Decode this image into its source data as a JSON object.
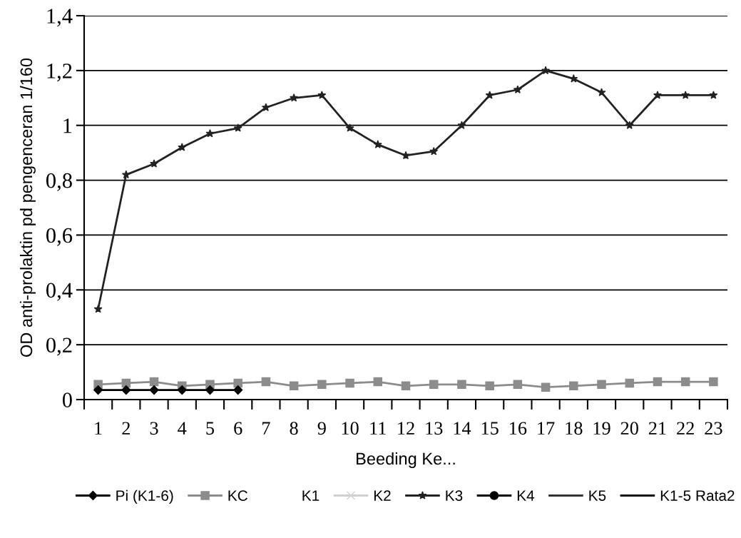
{
  "chart_data": {
    "type": "line",
    "xlabel": "Beeding Ke...",
    "ylabel": "OD anti-prolaktin pd pengenceran 1/160",
    "categories": [
      "1",
      "2",
      "3",
      "4",
      "5",
      "6",
      "7",
      "8",
      "9",
      "10",
      "11",
      "12",
      "13",
      "14",
      "15",
      "16",
      "17",
      "18",
      "19",
      "20",
      "21",
      "22",
      "23"
    ],
    "series": [
      {
        "name": "Pi (K1-6)",
        "color": "#000000",
        "marker": "diamond",
        "values": [
          0.035,
          0.035,
          0.035,
          0.035,
          0.035,
          0.035,
          null,
          null,
          null,
          null,
          null,
          null,
          null,
          null,
          null,
          null,
          null,
          null,
          null,
          null,
          null,
          null,
          null
        ]
      },
      {
        "name": "KC",
        "color": "#8c8c8c",
        "marker": "square",
        "values": [
          0.055,
          0.06,
          0.065,
          0.05,
          0.055,
          0.06,
          0.065,
          0.05,
          0.055,
          0.06,
          0.065,
          0.05,
          0.055,
          0.055,
          0.05,
          0.055,
          0.045,
          0.05,
          0.055,
          0.06,
          0.065,
          0.065,
          0.065
        ]
      },
      {
        "name": "K1",
        "values": [
          null,
          null,
          null,
          null,
          null,
          null,
          null,
          null,
          null,
          null,
          null,
          null,
          null,
          null,
          null,
          null,
          null,
          null,
          null,
          null,
          null,
          null,
          null
        ]
      },
      {
        "name": "K2",
        "color": "#d0d0d0",
        "marker": "cross",
        "values": [
          null,
          null,
          null,
          null,
          null,
          null,
          null,
          null,
          null,
          null,
          null,
          null,
          null,
          null,
          null,
          null,
          null,
          null,
          null,
          null,
          null,
          null,
          null
        ]
      },
      {
        "name": "K3",
        "color": "#222222",
        "marker": "star",
        "values": [
          0.33,
          0.82,
          0.86,
          0.92,
          0.97,
          0.99,
          1.065,
          1.1,
          1.11,
          0.99,
          0.93,
          0.89,
          0.905,
          1.0,
          1.11,
          1.13,
          1.2,
          1.17,
          1.12,
          1.0,
          1.11,
          1.11,
          1.11
        ]
      },
      {
        "name": "K4",
        "color": "#000000",
        "marker": "circle",
        "values": [
          null,
          null,
          null,
          null,
          null,
          null,
          null,
          null,
          null,
          null,
          null,
          null,
          null,
          null,
          null,
          null,
          null,
          null,
          null,
          null,
          null,
          null,
          null
        ]
      },
      {
        "name": "K5",
        "color": "#333333",
        "values": [
          null,
          null,
          null,
          null,
          null,
          null,
          null,
          null,
          null,
          null,
          null,
          null,
          null,
          null,
          null,
          null,
          null,
          null,
          null,
          null,
          null,
          null,
          null
        ]
      },
      {
        "name": "K1-5 Rata2",
        "color": "#111111",
        "values": [
          null,
          null,
          null,
          null,
          null,
          null,
          null,
          null,
          null,
          null,
          null,
          null,
          null,
          null,
          null,
          null,
          null,
          null,
          null,
          null,
          null,
          null,
          null
        ]
      }
    ],
    "ylim": [
      0,
      1.4
    ],
    "yticks": [
      0,
      {
        "value": 0.2,
        "label": "0,2"
      },
      {
        "value": 0.4,
        "label": "0,4"
      },
      {
        "value": 0.6,
        "label": "0,6"
      },
      {
        "value": 0.8,
        "label": "0,8"
      },
      1,
      {
        "value": 1.2,
        "label": "1,2"
      },
      {
        "value": 1.4,
        "label": "1,4"
      }
    ],
    "grid": "y",
    "legend": "bottom",
    "line_style": "solid"
  }
}
